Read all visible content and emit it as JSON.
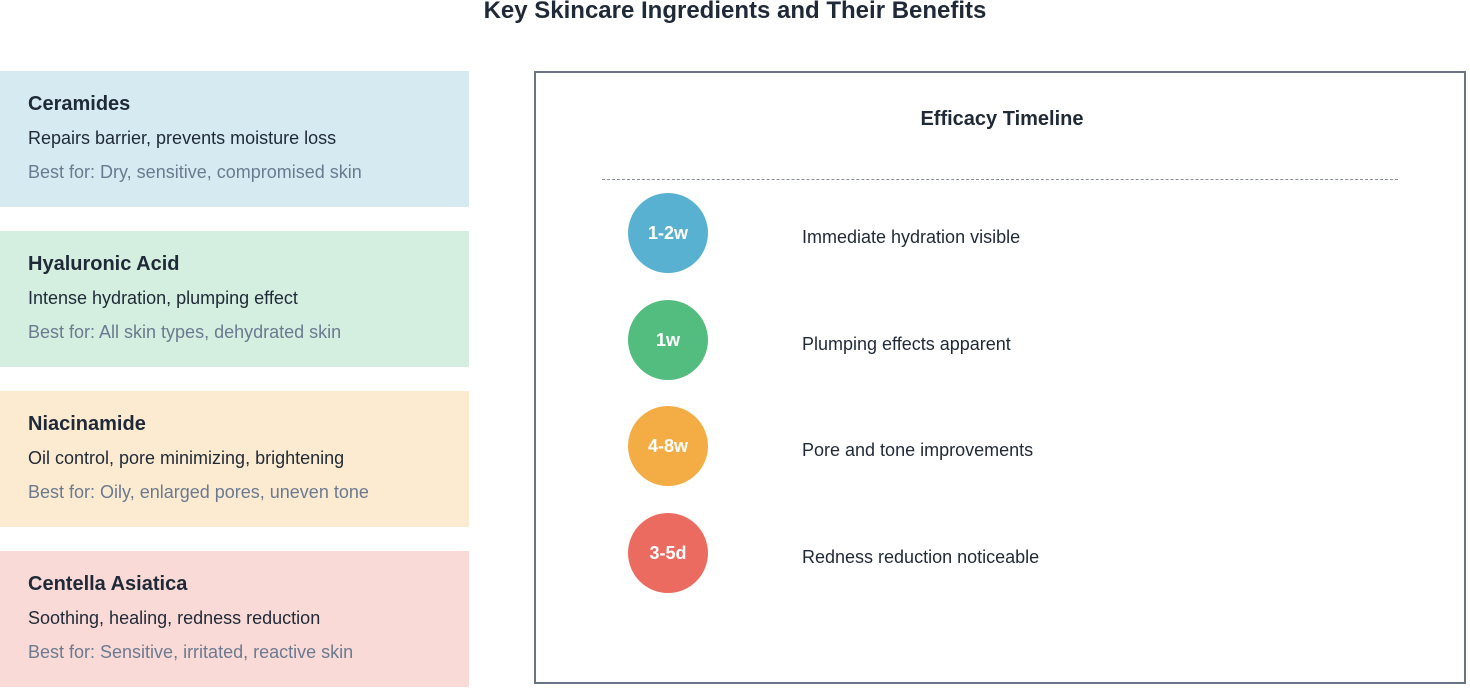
{
  "title": "Key Skincare Ingredients and Their Benefits",
  "ingredients": [
    {
      "name": "Ceramides",
      "benefit": "Repairs barrier, prevents moisture loss",
      "best_for": "Best for: Dry, sensitive, compromised skin",
      "bg_color": "#d5ebf1"
    },
    {
      "name": "Hyaluronic Acid",
      "benefit": "Intense hydration, plumping effect",
      "best_for": "Best for: All skin types, dehydrated skin",
      "bg_color": "#d4eee0"
    },
    {
      "name": "Niacinamide",
      "benefit": "Oil control, pore minimizing, brightening",
      "best_for": "Best for: Oily, enlarged pores, uneven tone",
      "bg_color": "#fcebd0"
    },
    {
      "name": "Centella Asiatica",
      "benefit": "Soothing, healing, redness reduction",
      "best_for": "Best for: Sensitive, irritated, reactive skin",
      "bg_color": "#f9dad7"
    }
  ],
  "timeline": {
    "title": "Efficacy Timeline",
    "items": [
      {
        "duration": "1-2w",
        "description": "Immediate hydration visible",
        "color": "#58b1d0"
      },
      {
        "duration": "1w",
        "description": "Plumping effects apparent",
        "color": "#52bd7f"
      },
      {
        "duration": "4-8w",
        "description": "Pore and tone improvements",
        "color": "#f4ad45"
      },
      {
        "duration": "3-5d",
        "description": "Redness reduction noticeable",
        "color": "#ec6b60"
      }
    ]
  }
}
